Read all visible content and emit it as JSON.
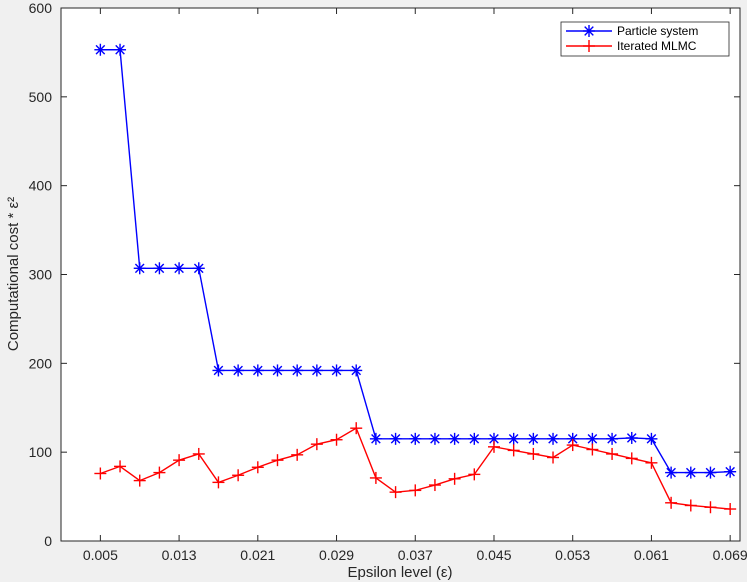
{
  "chart_data": {
    "type": "line",
    "xlabel": "Epsilon level (ε)",
    "ylabel": "Computational cost * ε²",
    "xlim": [
      0.001,
      0.07
    ],
    "ylim": [
      0,
      600
    ],
    "x_ticks": [
      0.005,
      0.013,
      0.021,
      0.029,
      0.037,
      0.045,
      0.053,
      0.061,
      0.069
    ],
    "x_tick_labels": [
      "0.005",
      "0.013",
      "0.021",
      "0.029",
      "0.037",
      "0.045",
      "0.053",
      "0.061",
      "0.069"
    ],
    "y_ticks": [
      0,
      100,
      200,
      300,
      400,
      500,
      600
    ],
    "y_tick_labels": [
      "0",
      "100",
      "200",
      "300",
      "400",
      "500",
      "600"
    ],
    "grid": false,
    "legend_position": "top-right",
    "x": [
      0.005,
      0.007,
      0.009,
      0.011,
      0.013,
      0.015,
      0.017,
      0.019,
      0.021,
      0.023,
      0.025,
      0.027,
      0.029,
      0.031,
      0.033,
      0.035,
      0.037,
      0.039,
      0.041,
      0.043,
      0.045,
      0.047,
      0.049,
      0.051,
      0.053,
      0.055,
      0.057,
      0.059,
      0.061,
      0.063,
      0.065,
      0.067,
      0.069
    ],
    "series": [
      {
        "name": "Particle system",
        "color": "#0000ff",
        "marker": "asterisk",
        "values": [
          553,
          553,
          307,
          307,
          307,
          307,
          192,
          192,
          192,
          192,
          192,
          192,
          192,
          192,
          115,
          115,
          115,
          115,
          115,
          115,
          115,
          115,
          115,
          115,
          115,
          115,
          115,
          116,
          115,
          77,
          77,
          77,
          78
        ]
      },
      {
        "name": "Iterated MLMC",
        "color": "#ff0000",
        "marker": "plus",
        "values": [
          76,
          84,
          68,
          77,
          91,
          98,
          66,
          74,
          83,
          91,
          97,
          109,
          114,
          127,
          71,
          55,
          57,
          63,
          70,
          75,
          106,
          102,
          98,
          94,
          108,
          103,
          98,
          93,
          88,
          43,
          40,
          38,
          36
        ]
      }
    ]
  }
}
